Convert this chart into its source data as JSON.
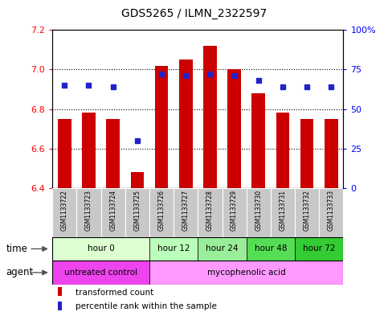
{
  "title": "GDS5265 / ILMN_2322597",
  "samples": [
    "GSM1133722",
    "GSM1133723",
    "GSM1133724",
    "GSM1133725",
    "GSM1133726",
    "GSM1133727",
    "GSM1133728",
    "GSM1133729",
    "GSM1133730",
    "GSM1133731",
    "GSM1133732",
    "GSM1133733"
  ],
  "transformed_counts": [
    6.75,
    6.78,
    6.75,
    6.48,
    7.02,
    7.05,
    7.12,
    7.0,
    6.88,
    6.78,
    6.75,
    6.75
  ],
  "percentile_ranks": [
    65,
    65,
    64,
    30,
    72,
    71,
    72,
    71,
    68,
    64,
    64,
    64
  ],
  "y_min": 6.4,
  "y_max": 7.2,
  "y_ticks_left": [
    6.4,
    6.6,
    6.8,
    7.0,
    7.2
  ],
  "y_ticks_right_labels": [
    "0",
    "25",
    "50",
    "75",
    "100%"
  ],
  "y_ticks_right_values": [
    0,
    25,
    50,
    75,
    100
  ],
  "bar_color": "#CC0000",
  "dot_color": "#2222CC",
  "bar_bottom": 6.4,
  "time_groups": [
    {
      "label": "hour 0",
      "start": 0,
      "end": 4,
      "color": "#ddffd0"
    },
    {
      "label": "hour 12",
      "start": 4,
      "end": 6,
      "color": "#bbffbb"
    },
    {
      "label": "hour 24",
      "start": 6,
      "end": 8,
      "color": "#99ee99"
    },
    {
      "label": "hour 48",
      "start": 8,
      "end": 10,
      "color": "#55dd55"
    },
    {
      "label": "hour 72",
      "start": 10,
      "end": 12,
      "color": "#33cc33"
    }
  ],
  "agent_groups": [
    {
      "label": "untreated control",
      "start": 0,
      "end": 4,
      "color": "#ee44ee"
    },
    {
      "label": "mycophenolic acid",
      "start": 4,
      "end": 12,
      "color": "#ff99ff"
    }
  ],
  "legend_items": [
    {
      "label": "transformed count",
      "color": "#CC0000"
    },
    {
      "label": "percentile rank within the sample",
      "color": "#2222CC"
    }
  ],
  "bg_color": "#ffffff"
}
